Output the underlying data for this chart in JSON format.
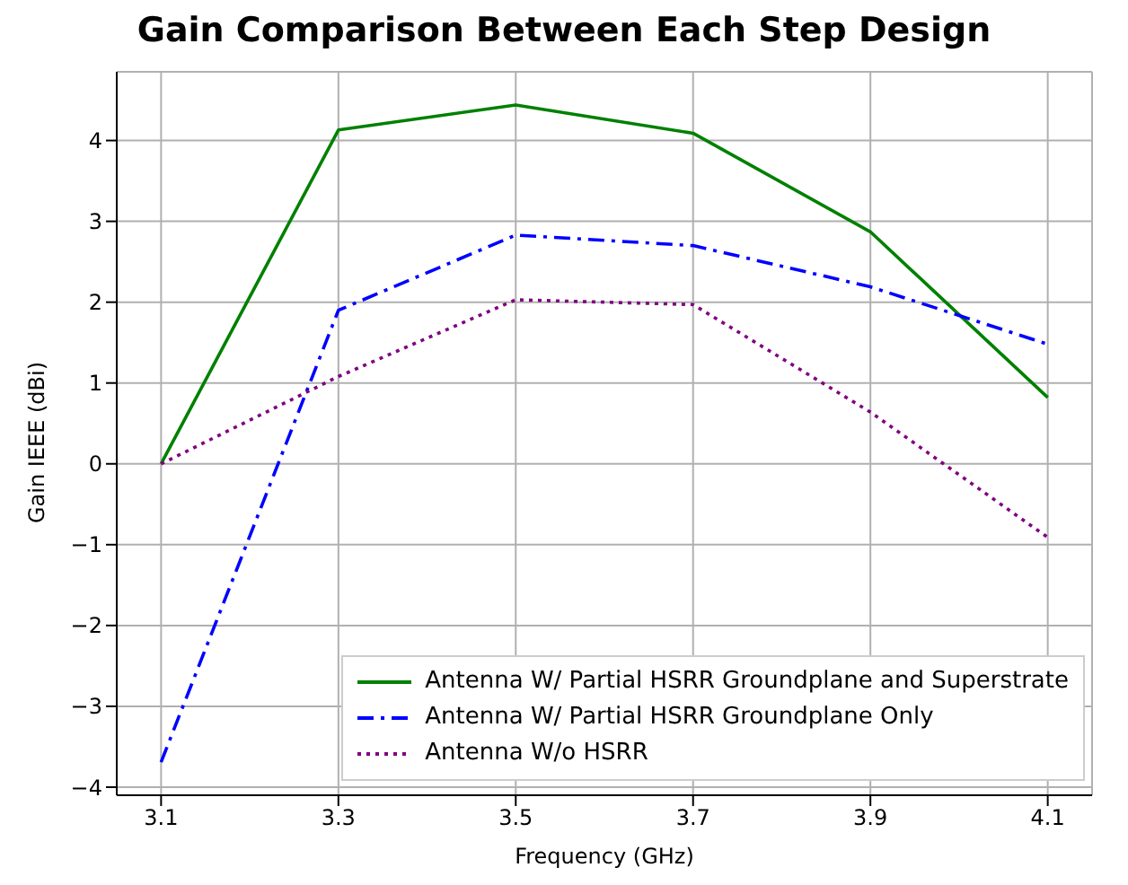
{
  "chart_data": {
    "type": "line",
    "title": "Gain Comparison Between Each Step Design",
    "xlabel": "Frequency (GHz)",
    "ylabel": "Gain IEEE (dBi)",
    "x": [
      3.1,
      3.3,
      3.5,
      3.7,
      3.9,
      4.1
    ],
    "series": [
      {
        "name": "Antenna W/ Partial HSRR Groundplane and Superstrate",
        "color": "#008000",
        "line_style": "solid",
        "values": [
          0,
          4.13,
          4.44,
          4.09,
          2.87,
          0.82
        ]
      },
      {
        "name": "Antenna W/ Partial HSRR Groundplane Only",
        "color": "#0000ff",
        "line_style": "dashed",
        "values": [
          -3.69,
          1.9,
          2.83,
          2.7,
          2.19,
          1.48
        ]
      },
      {
        "name": "Antenna W/o HSRR",
        "color": "#800080",
        "line_style": "dotted",
        "values": [
          0,
          1.08,
          2.03,
          1.97,
          0.64,
          -0.91
        ]
      }
    ],
    "xlim": [
      3.05,
      4.15
    ],
    "xticks": [
      3.1,
      3.3,
      3.5,
      3.7,
      3.9,
      4.1
    ],
    "ylim": [
      -4.1,
      4.85
    ],
    "yticks": [
      -4,
      -3,
      -2,
      -1,
      0,
      1,
      2,
      3,
      4
    ],
    "grid": true,
    "legend": "bottom right",
    "marker": "none"
  }
}
